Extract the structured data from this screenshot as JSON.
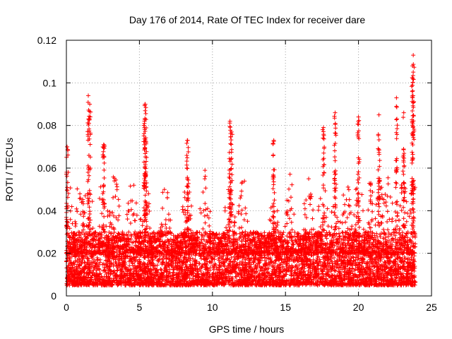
{
  "chart_data": {
    "type": "scatter",
    "title": "Day 176 of 2014, Rate Of TEC Index for receiver dare",
    "xlabel": "GPS time / hours",
    "ylabel": "ROTI / TECUs",
    "xlim": [
      0,
      25
    ],
    "ylim": [
      0,
      0.12
    ],
    "xticks": [
      0,
      5,
      10,
      15,
      20,
      25
    ],
    "xtick_labels": [
      "0",
      "5",
      "10",
      "15",
      "20",
      "25"
    ],
    "yticks": [
      0,
      0.02,
      0.04,
      0.06,
      0.08,
      0.1,
      0.12
    ],
    "ytick_labels": [
      "0",
      "0.02",
      "0.04",
      "0.06",
      "0.08",
      "0.1",
      "0.12"
    ],
    "grid": true,
    "marker": "+",
    "color": "#ff0000",
    "series": [
      {
        "name": "ROTI",
        "x_range": [
          0,
          23.9
        ],
        "typical_range": [
          0.005,
          0.03
        ],
        "peaks": [
          {
            "x": 0.05,
            "y": 0.07
          },
          {
            "x": 1.5,
            "y": 0.094
          },
          {
            "x": 1.6,
            "y": 0.09
          },
          {
            "x": 2.55,
            "y": 0.071
          },
          {
            "x": 5.4,
            "y": 0.09
          },
          {
            "x": 5.35,
            "y": 0.082
          },
          {
            "x": 5.45,
            "y": 0.072
          },
          {
            "x": 8.3,
            "y": 0.073
          },
          {
            "x": 11.2,
            "y": 0.082
          },
          {
            "x": 11.3,
            "y": 0.077
          },
          {
            "x": 14.2,
            "y": 0.073
          },
          {
            "x": 17.6,
            "y": 0.079
          },
          {
            "x": 18.4,
            "y": 0.086
          },
          {
            "x": 20.0,
            "y": 0.084
          },
          {
            "x": 21.4,
            "y": 0.085
          },
          {
            "x": 22.6,
            "y": 0.093
          },
          {
            "x": 23.1,
            "y": 0.086
          },
          {
            "x": 23.75,
            "y": 0.113
          },
          {
            "x": 23.7,
            "y": 0.108
          },
          {
            "x": 23.72,
            "y": 0.102
          }
        ]
      }
    ]
  }
}
